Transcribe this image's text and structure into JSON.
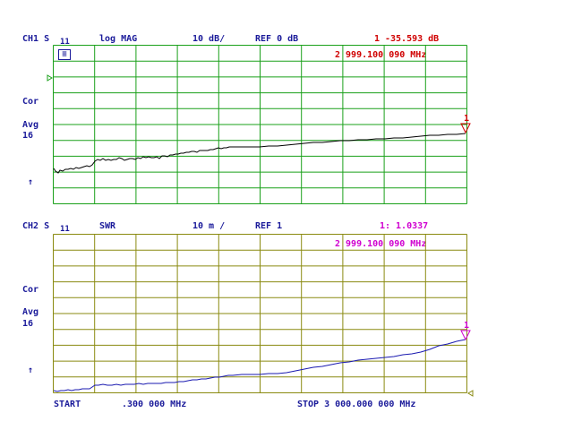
{
  "ch1": {
    "label": "CH1 S",
    "sub": "11",
    "format": "log MAG",
    "scale": "10 dB/",
    "ref": "REF 0 dB",
    "marker_num": "1",
    "marker_val": "-35.593 dB",
    "marker_freq": "2 999.100 090 MHz",
    "cor": "Cor",
    "avg": "Avg",
    "avg_n": "16",
    "ref_arrow": "↑",
    "box_label": "≡",
    "grid_color": "#1aa01a",
    "trace_color": "#000000"
  },
  "ch2": {
    "label": "CH2 S",
    "sub": "11",
    "format": "SWR",
    "scale": "10 m /",
    "ref": "REF 1",
    "marker_num": "1",
    "marker_val": ": 1.0337",
    "marker_freq": "2 999.100 090 MHz",
    "cor": "Cor",
    "avg": "Avg",
    "avg_n": "16",
    "ref_arrow": "↑",
    "grid_color": "#8a8a10",
    "trace_color": "#1a1ab0"
  },
  "footer": {
    "start_label": "START",
    "start_value": ".300 000 MHz",
    "stop_label": "STOP 3 000.000 000 MHz"
  }
}
